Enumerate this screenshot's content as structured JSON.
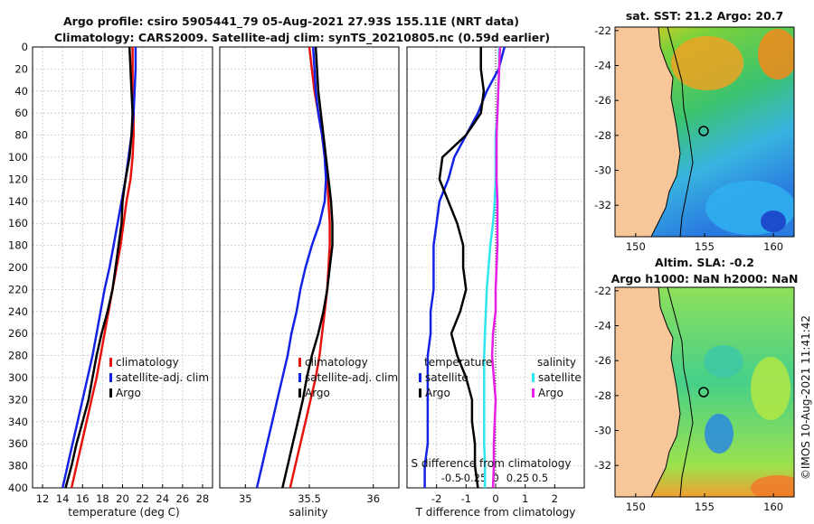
{
  "figure": {
    "title_line1": "Argo profile: csiro 5905441_79 05-Aug-2021 27.93S 155.11E (NRT data)",
    "title_line2": "Climatology: CARS2009. Satellite-adj clim: synTS_20210805.nc (0.59d earlier)",
    "watermark": "©IMOS 10-Aug-2021 11:41:42",
    "colors": {
      "climatology": "#e8120c",
      "satellite": "#1222e6",
      "argo": "#000000",
      "sat_salinity": "#2ee6ee",
      "argo_salinity": "#e61ee6",
      "land": "#f7c79a"
    }
  },
  "chart_data": [
    {
      "type": "line",
      "id": "temperature",
      "xlabel": "temperature (deg C)",
      "ylabel": "",
      "xlim": [
        11,
        29
      ],
      "ylim": [
        400,
        0
      ],
      "xticks": [
        "12",
        "14",
        "16",
        "18",
        "20",
        "22",
        "24",
        "26",
        "28"
      ],
      "yticks": [
        "0",
        "20",
        "40",
        "60",
        "80",
        "100",
        "120",
        "140",
        "160",
        "180",
        "200",
        "220",
        "240",
        "260",
        "280",
        "300",
        "320",
        "340",
        "360",
        "380",
        "400"
      ],
      "depth": [
        0,
        20,
        40,
        60,
        80,
        100,
        120,
        140,
        160,
        180,
        200,
        220,
        240,
        260,
        280,
        300,
        320,
        340,
        360,
        380,
        400
      ],
      "series": [
        {
          "name": "climatology",
          "values": [
            21.0,
            21.0,
            21.0,
            21.1,
            21.1,
            21.0,
            20.8,
            20.4,
            20.1,
            19.8,
            19.4,
            19.0,
            18.6,
            18.2,
            17.8,
            17.4,
            16.9,
            16.4,
            15.9,
            15.4,
            14.9
          ]
        },
        {
          "name": "satellite-adj. clim",
          "values": [
            21.3,
            21.3,
            21.2,
            21.1,
            20.9,
            20.6,
            20.3,
            19.9,
            19.5,
            19.1,
            18.7,
            18.2,
            17.8,
            17.4,
            17.0,
            16.5,
            16.0,
            15.5,
            15.0,
            14.5,
            14.0
          ]
        },
        {
          "name": "Argo",
          "values": [
            20.7,
            20.8,
            20.9,
            21.0,
            20.9,
            20.7,
            20.3,
            20.0,
            19.9,
            19.6,
            19.3,
            19.0,
            18.5,
            17.9,
            17.4,
            17.0,
            16.6,
            16.0,
            15.4,
            14.9,
            14.3
          ]
        }
      ],
      "legend": [
        "climatology",
        "satellite-adj. clim",
        "Argo"
      ]
    },
    {
      "type": "line",
      "id": "salinity",
      "xlabel": "salinity",
      "xlim": [
        34.8,
        36.2
      ],
      "ylim": [
        400,
        0
      ],
      "xticks": [
        "35",
        "35.5",
        "36"
      ],
      "depth": [
        0,
        20,
        40,
        60,
        80,
        100,
        120,
        140,
        160,
        180,
        200,
        220,
        240,
        260,
        280,
        300,
        320,
        340,
        360,
        380,
        400
      ],
      "series": [
        {
          "name": "climatology",
          "values": [
            35.5,
            35.52,
            35.54,
            35.57,
            35.6,
            35.62,
            35.64,
            35.65,
            35.66,
            35.66,
            35.65,
            35.64,
            35.62,
            35.6,
            35.58,
            35.55,
            35.51,
            35.47,
            35.43,
            35.39,
            35.35
          ]
        },
        {
          "name": "satellite-adj. clim",
          "values": [
            35.53,
            35.54,
            35.55,
            35.57,
            35.6,
            35.62,
            35.63,
            35.62,
            35.58,
            35.52,
            35.47,
            35.43,
            35.4,
            35.36,
            35.33,
            35.29,
            35.25,
            35.21,
            35.17,
            35.13,
            35.09
          ]
        },
        {
          "name": "Argo",
          "values": [
            35.55,
            35.56,
            35.57,
            35.59,
            35.61,
            35.63,
            35.65,
            35.67,
            35.68,
            35.68,
            35.66,
            35.64,
            35.61,
            35.57,
            35.52,
            35.48,
            35.45,
            35.41,
            35.37,
            35.33,
            35.29
          ]
        }
      ],
      "legend": [
        "climatology",
        "satellite-adj. clim",
        "Argo"
      ]
    },
    {
      "type": "line",
      "id": "difference",
      "xlabel": "T difference from climatology",
      "top_xlabel": "S difference from climatology",
      "xlim": [
        -3,
        3
      ],
      "ylim": [
        400,
        0
      ],
      "xticks": [
        "-2",
        "-1",
        "0",
        "1",
        "2"
      ],
      "top_xticks": [
        "-0.5",
        "-0.25",
        "0",
        "0.25",
        "0.5"
      ],
      "depth": [
        0,
        20,
        40,
        60,
        80,
        100,
        120,
        140,
        160,
        180,
        200,
        220,
        240,
        260,
        280,
        300,
        320,
        340,
        360,
        380,
        400
      ],
      "series": [
        {
          "name": "temperature satellite",
          "values": [
            0.3,
            0.1,
            -0.3,
            -0.6,
            -1.0,
            -1.4,
            -1.6,
            -1.9,
            -2.0,
            -2.1,
            -2.1,
            -2.1,
            -2.2,
            -2.2,
            -2.3,
            -2.3,
            -2.3,
            -2.3,
            -2.3,
            -2.4,
            -2.4
          ]
        },
        {
          "name": "temperature Argo",
          "values": [
            -0.5,
            -0.5,
            -0.4,
            -0.5,
            -1.0,
            -1.8,
            -1.9,
            -1.6,
            -1.3,
            -1.1,
            -1.1,
            -1.0,
            -1.2,
            -1.5,
            -1.3,
            -1.0,
            -0.8,
            -0.8,
            -0.7,
            -0.7,
            -0.6
          ]
        },
        {
          "name": "salinity satellite",
          "values": [
            0.04,
            0.04,
            0.03,
            0.02,
            0.0,
            0.0,
            0.0,
            -0.01,
            -0.03,
            -0.06,
            -0.08,
            -0.1,
            -0.11,
            -0.12,
            -0.13,
            -0.13,
            -0.13,
            -0.13,
            -0.13,
            -0.12,
            -0.12
          ]
        },
        {
          "name": "salinity Argo",
          "values": [
            0.05,
            0.04,
            0.03,
            0.02,
            0.01,
            0.01,
            0.01,
            0.02,
            0.02,
            0.02,
            0.01,
            0.0,
            0.0,
            -0.03,
            -0.04,
            -0.02,
            0.0,
            -0.01,
            -0.02,
            -0.02,
            -0.03
          ]
        }
      ],
      "legend_temperature": {
        "title": "temperature",
        "items": [
          "satellite",
          "Argo"
        ]
      },
      "legend_salinity": {
        "title": "salinity",
        "items": [
          "satellite",
          "Argo"
        ]
      }
    },
    {
      "type": "heatmap",
      "id": "sst_map",
      "title": "sat. SST: 21.2 Argo: 20.7",
      "xticks": [
        "150",
        "155",
        "160"
      ],
      "yticks": [
        "-22",
        "-24",
        "-26",
        "-28",
        "-30",
        "-32"
      ],
      "xlim": [
        148.5,
        161.5
      ],
      "ylim": [
        -33.8,
        -21.8
      ],
      "argo_position": [
        155.11,
        -27.93
      ]
    },
    {
      "type": "heatmap",
      "id": "sla_map",
      "title": "Altim. SLA: -0.2",
      "subtitle": "Argo h1000: NaN h2000: NaN",
      "xticks": [
        "150",
        "155",
        "160"
      ],
      "yticks": [
        "-22",
        "-24",
        "-26",
        "-28",
        "-30",
        "-32"
      ],
      "xlim": [
        148.5,
        161.5
      ],
      "ylim": [
        -33.8,
        -21.8
      ],
      "argo_position": [
        155.11,
        -27.93
      ]
    }
  ]
}
